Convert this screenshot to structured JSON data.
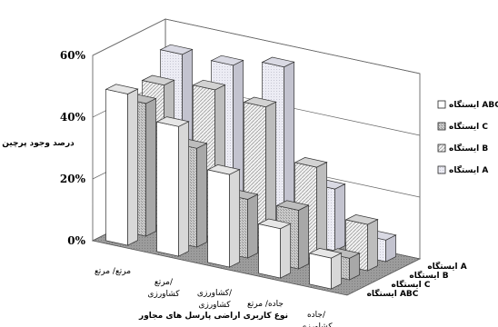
{
  "chart_data": {
    "type": "bar",
    "title": "",
    "xlabel": "نوع کاربری اراضی پارسل های مجاور",
    "ylabel": "درصد وجود پرچین",
    "ylim": [
      0,
      60
    ],
    "yticks": [
      "0%",
      "20%",
      "40%",
      "60%"
    ],
    "grid": true,
    "legend_position": "right",
    "categories": [
      "مرتع/ مرتع",
      "مرتع/ کشاورزی",
      "کشاورزی/ کشاورزی",
      "جاده/ مرتع",
      "جاده/ کشاورزی"
    ],
    "series": [
      {
        "name": "ایستگاه ABC",
        "values": [
          49,
          42,
          30,
          16,
          10
        ],
        "fill": "white"
      },
      {
        "name": "ایستگاه C",
        "values": [
          43,
          32,
          19,
          19,
          7
        ],
        "fill": "gray"
      },
      {
        "name": "ایستگاه B",
        "values": [
          46,
          48,
          46,
          30,
          15
        ],
        "fill": "hatch"
      },
      {
        "name": "ایستگاه A",
        "values": [
          53,
          53,
          56,
          20,
          7
        ],
        "fill": "light"
      }
    ],
    "depth_labels": [
      "ایستگاه A",
      "ایستگاه B",
      "ایستگاه C",
      "ایستگاه ABC"
    ]
  }
}
